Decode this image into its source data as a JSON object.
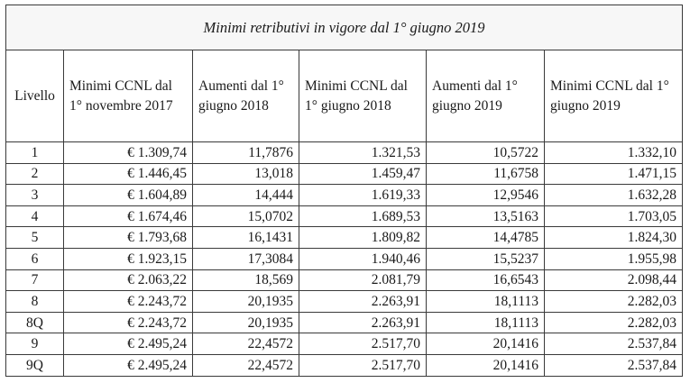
{
  "table": {
    "title": "Minimi retributivi in vigore dal 1° giugno 2019",
    "headers": [
      "Livello",
      "Minimi CCNL dal 1° novembre 2017",
      "Aumenti dal 1° giugno 2018",
      "Minimi CCNL dal 1° giugno 2018",
      "Aumenti dal 1° giugno 2019",
      "Minimi CCNL dal 1° giugno 2019"
    ],
    "rows": [
      [
        "1",
        "€ 1.309,74",
        "11,7876",
        "1.321,53",
        "10,5722",
        "1.332,10"
      ],
      [
        "2",
        "€ 1.446,45",
        "13,018",
        "1.459,47",
        "11,6758",
        "1.471,15"
      ],
      [
        "3",
        "€ 1.604,89",
        "14,444",
        "1.619,33",
        "12,9546",
        "1.632,28"
      ],
      [
        "4",
        "€ 1.674,46",
        "15,0702",
        "1.689,53",
        "13,5163",
        "1.703,05"
      ],
      [
        "5",
        "€ 1.793,68",
        "16,1431",
        "1.809,82",
        "14,4785",
        "1.824,30"
      ],
      [
        "6",
        "€ 1.923,15",
        "17,3084",
        "1.940,46",
        "15,5237",
        "1.955,98"
      ],
      [
        "7",
        "€ 2.063,22",
        "18,569",
        "2.081,79",
        "16,6543",
        "2.098,44"
      ],
      [
        "8",
        "€ 2.243,72",
        "20,1935",
        "2.263,91",
        "18,1113",
        "2.282,03"
      ],
      [
        "8Q",
        "€ 2.243,72",
        "20,1935",
        "2.263,91",
        "18,1113",
        "2.282,03"
      ],
      [
        "9",
        "€ 2.495,24",
        "22,4572",
        "2.517,70",
        "20,1416",
        "2.537,84"
      ],
      [
        "9Q",
        "€ 2.495,24",
        "22,4572",
        "2.517,70",
        "20,1416",
        "2.537,84"
      ]
    ]
  }
}
